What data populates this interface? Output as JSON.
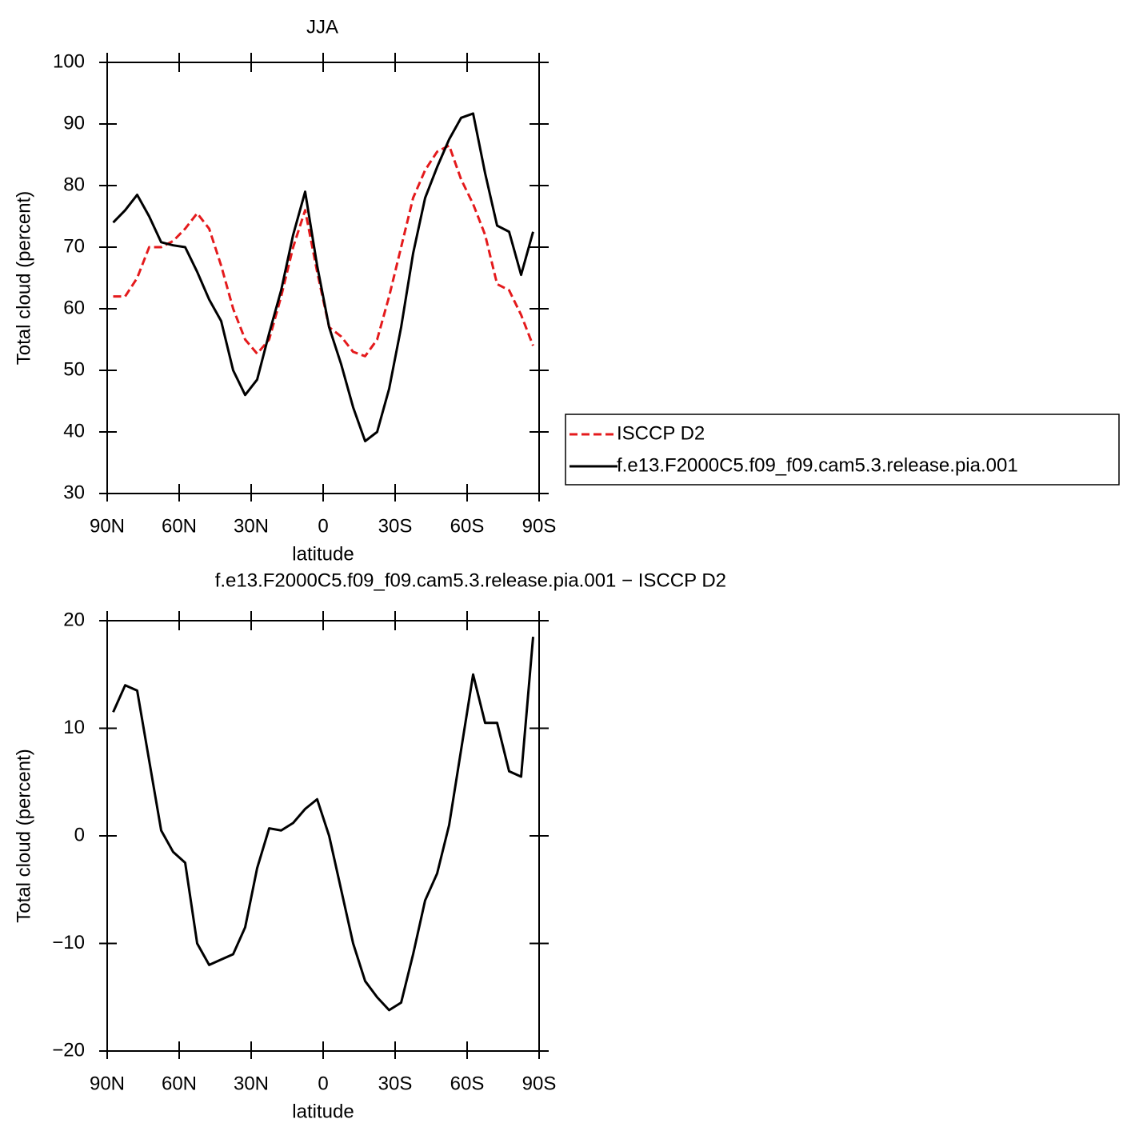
{
  "chart_data": [
    {
      "type": "line",
      "title": "JJA",
      "xlabel": "latitude",
      "ylabel": "Total cloud (percent)",
      "x": [
        87.5,
        82.5,
        77.5,
        72.5,
        67.5,
        62.5,
        57.5,
        52.5,
        47.5,
        42.5,
        37.5,
        32.5,
        27.5,
        22.5,
        17.5,
        12.5,
        7.5,
        2.5,
        -2.5,
        -7.5,
        -12.5,
        -17.5,
        -22.5,
        -27.5,
        -32.5,
        -37.5,
        -42.5,
        -47.5,
        -52.5,
        -57.5,
        -62.5,
        -67.5,
        -72.5,
        -77.5,
        -82.5,
        -87.5
      ],
      "xlim": [
        90,
        -90
      ],
      "xticks": [
        {
          "value": 90,
          "label": "90N"
        },
        {
          "value": 60,
          "label": "60N"
        },
        {
          "value": 30,
          "label": "30N"
        },
        0,
        {
          "value": -30,
          "label": "30S"
        },
        {
          "value": -60,
          "label": "60S"
        },
        {
          "value": -90,
          "label": "90S"
        }
      ],
      "ylim": [
        30,
        100
      ],
      "yticks": [
        30,
        40,
        50,
        60,
        70,
        80,
        90,
        100
      ],
      "legend": "right",
      "series": [
        {
          "name": "ISCCP D2",
          "color": "#e41a1c",
          "dash": true,
          "values": [
            62,
            62,
            65,
            70,
            70,
            71,
            73,
            75.5,
            73,
            67,
            60,
            55,
            52.7,
            55,
            62,
            70,
            76,
            66,
            57,
            55.5,
            53,
            52.3,
            55,
            62,
            70,
            78,
            82.5,
            85.5,
            86.5,
            81,
            77,
            72,
            64,
            63,
            59,
            54
          ]
        },
        {
          "name": "f.e13.F2000C5.f09_f09.cam5.3.release.pia.001",
          "color": "#000000",
          "dash": false,
          "values": [
            74,
            76,
            78.5,
            75,
            70.8,
            70.3,
            70,
            66,
            61.5,
            58,
            50,
            46,
            48.5,
            56,
            63,
            72,
            79,
            67,
            57,
            51,
            44,
            38.5,
            40,
            47,
            57,
            69,
            78,
            83,
            87.5,
            91,
            91.7,
            82,
            73.5,
            72.5,
            65.5,
            72.5
          ]
        }
      ]
    },
    {
      "type": "line",
      "title": "f.e13.F2000C5.f09_f09.cam5.3.release.pia.001 − ISCCP D2",
      "xlabel": "latitude",
      "ylabel": "Total cloud (percent)",
      "x": [
        87.5,
        82.5,
        77.5,
        72.5,
        67.5,
        62.5,
        57.5,
        52.5,
        47.5,
        42.5,
        37.5,
        32.5,
        27.5,
        22.5,
        17.5,
        12.5,
        7.5,
        2.5,
        -2.5,
        -7.5,
        -12.5,
        -17.5,
        -22.5,
        -27.5,
        -32.5,
        -37.5,
        -42.5,
        -47.5,
        -52.5,
        -57.5,
        -62.5,
        -67.5,
        -72.5,
        -77.5,
        -82.5,
        -87.5
      ],
      "xlim": [
        90,
        -90
      ],
      "xticks": [
        {
          "value": 90,
          "label": "90N"
        },
        {
          "value": 60,
          "label": "60N"
        },
        {
          "value": 30,
          "label": "30N"
        },
        0,
        {
          "value": -30,
          "label": "30S"
        },
        {
          "value": -60,
          "label": "60S"
        },
        {
          "value": -90,
          "label": "90S"
        }
      ],
      "ylim": [
        -20,
        20
      ],
      "yticks": [
        {
          "value": -20,
          "label": "−20"
        },
        {
          "value": -10,
          "label": "−10"
        },
        0,
        10,
        20
      ],
      "series": [
        {
          "color": "#000000",
          "dash": false,
          "values": [
            11.5,
            14,
            13.5,
            7,
            0.5,
            -1.5,
            -2.5,
            -10,
            -12,
            -11.5,
            -11,
            -8.5,
            -3,
            0.7,
            0.5,
            1.2,
            2.5,
            3.4,
            0,
            -5,
            -10,
            -13.5,
            -15,
            -16.2,
            -15.5,
            -11,
            -6,
            -3.5,
            1,
            8,
            15,
            10.5,
            10.5,
            6,
            5.5,
            18.5
          ]
        }
      ]
    }
  ]
}
